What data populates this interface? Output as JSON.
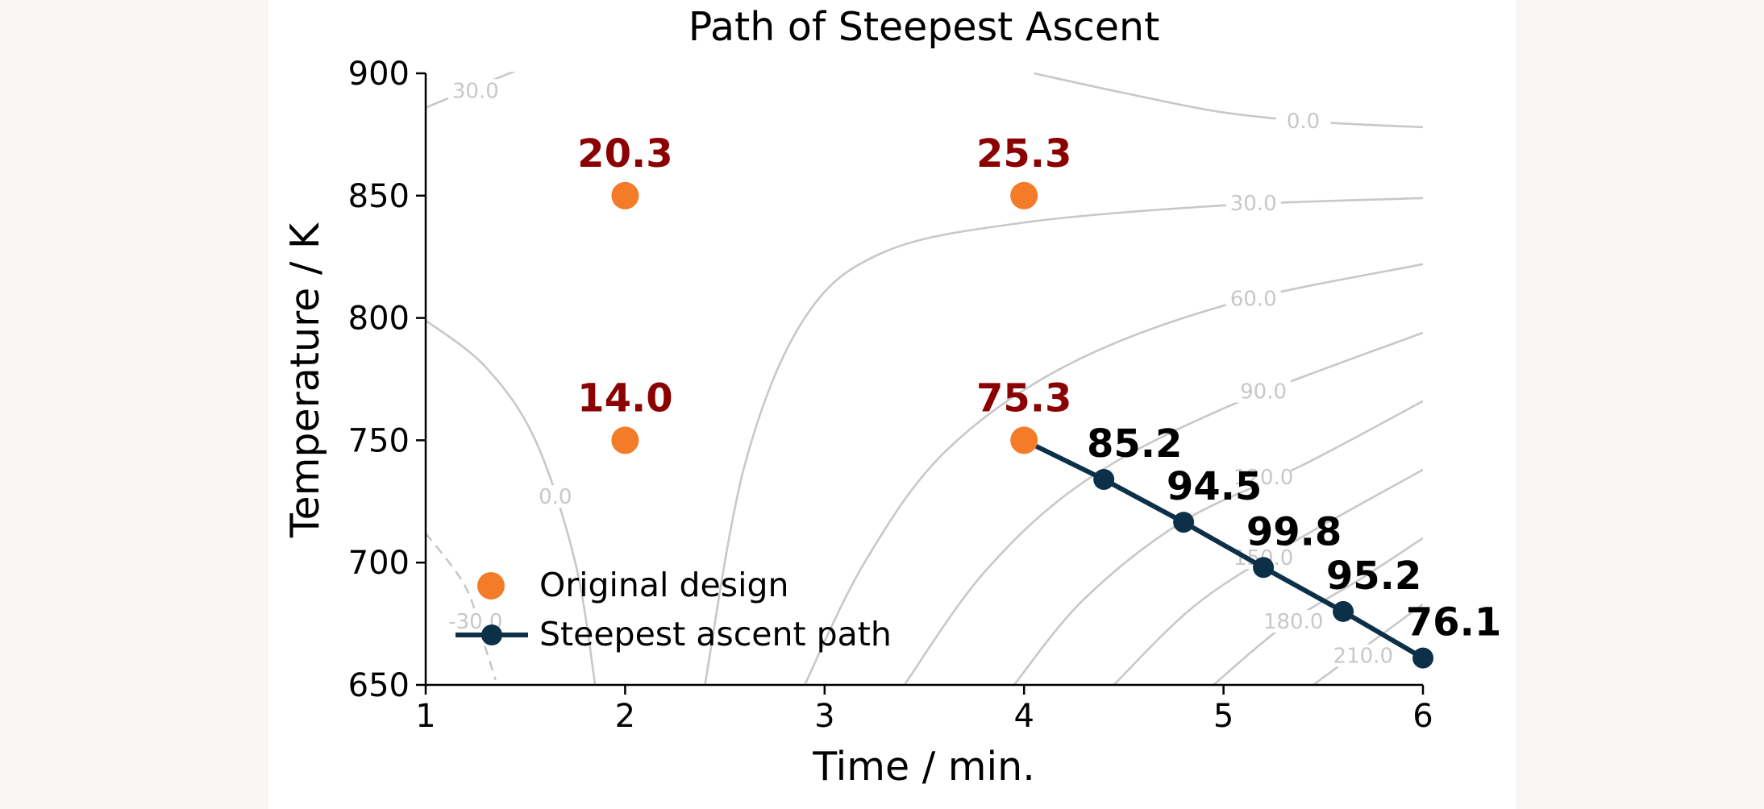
{
  "chart_data": {
    "type": "scatter",
    "title": "Path of Steepest Ascent",
    "xlabel": "Time / min.",
    "ylabel": "Temperature / K",
    "xlim": [
      1,
      6
    ],
    "ylim": [
      650,
      900
    ],
    "xticks": [
      "1",
      "2",
      "3",
      "4",
      "5",
      "6"
    ],
    "yticks": [
      "650",
      "700",
      "750",
      "800",
      "850",
      "900"
    ],
    "grid": false,
    "legend_position": "lower-left",
    "colors": {
      "design": "#f47b28",
      "design_label": "#8b0000",
      "path": "#0d3049",
      "path_label": "#000000",
      "contour": "#c8c8c8",
      "contour_label": "#c8c8c8",
      "axis": "#000000"
    },
    "series": [
      {
        "name": "Original design",
        "points": [
          {
            "x": 2,
            "y": 850,
            "label": "20.3"
          },
          {
            "x": 4,
            "y": 850,
            "label": "25.3"
          },
          {
            "x": 2,
            "y": 750,
            "label": "14.0"
          },
          {
            "x": 4,
            "y": 750,
            "label": "75.3"
          }
        ]
      },
      {
        "name": "Steepest ascent path",
        "points": [
          {
            "x": 4.0,
            "y": 750.0,
            "label": ""
          },
          {
            "x": 4.4,
            "y": 734,
            "label": "85.2"
          },
          {
            "x": 4.8,
            "y": 716.5,
            "label": "94.5"
          },
          {
            "x": 5.2,
            "y": 698,
            "label": "99.8"
          },
          {
            "x": 5.6,
            "y": 680,
            "label": "95.2"
          },
          {
            "x": 6.0,
            "y": 661,
            "label": "76.1"
          }
        ]
      }
    ],
    "contours": [
      {
        "level": "30.0",
        "points": [
          [
            1,
            886
          ],
          [
            1.45,
            901
          ]
        ],
        "label_at": [
          1.25,
          893
        ],
        "dashed": false
      },
      {
        "level": "0.0",
        "points": [
          [
            4.05,
            900
          ],
          [
            4.5,
            892
          ],
          [
            5,
            884
          ],
          [
            5.5,
            880
          ],
          [
            6,
            878
          ]
        ],
        "label_at": [
          5.4,
          880.5
        ],
        "dashed": false
      },
      {
        "level": "30.0",
        "points": [
          [
            2.4,
            650
          ],
          [
            2.6,
            740
          ],
          [
            2.9,
            800
          ],
          [
            3.3,
            827
          ],
          [
            4,
            839
          ],
          [
            5,
            846
          ],
          [
            6,
            849
          ]
        ],
        "label_at": [
          5.15,
          847
        ],
        "dashed": false
      },
      {
        "level": "60.0",
        "points": [
          [
            2.9,
            650
          ],
          [
            3.2,
            700
          ],
          [
            3.6,
            745
          ],
          [
            4.2,
            780
          ],
          [
            5,
            805
          ],
          [
            6,
            822
          ]
        ],
        "label_at": [
          5.15,
          808
        ],
        "dashed": false
      },
      {
        "level": "90.0",
        "points": [
          [
            3.4,
            650
          ],
          [
            3.8,
            696
          ],
          [
            4.3,
            733
          ],
          [
            5,
            763
          ],
          [
            6,
            794
          ]
        ],
        "label_at": [
          5.2,
          770
        ],
        "dashed": false
      },
      {
        "level": "120.0",
        "points": [
          [
            3.95,
            650
          ],
          [
            4.3,
            685
          ],
          [
            4.8,
            717
          ],
          [
            5.4,
            740
          ],
          [
            6,
            766
          ]
        ],
        "label_at": [
          5.2,
          735
        ],
        "dashed": false
      },
      {
        "level": "150.0",
        "points": [
          [
            4.45,
            650
          ],
          [
            4.85,
            682
          ],
          [
            5.3,
            706
          ],
          [
            6,
            738
          ]
        ],
        "label_at": [
          5.2,
          702
        ],
        "dashed": false
      },
      {
        "level": "180.0",
        "points": [
          [
            4.95,
            650
          ],
          [
            5.3,
            674
          ],
          [
            5.7,
            694
          ],
          [
            6,
            710
          ]
        ],
        "label_at": [
          5.35,
          676
        ],
        "dashed": false
      },
      {
        "level": "210.0",
        "points": [
          [
            5.45,
            650
          ],
          [
            5.75,
            668
          ],
          [
            6,
            683
          ]
        ],
        "label_at": [
          5.7,
          662
        ],
        "dashed": false
      },
      {
        "level": "0.0",
        "points": [
          [
            1,
            799
          ],
          [
            1.3,
            780
          ],
          [
            1.55,
            750
          ],
          [
            1.75,
            700
          ],
          [
            1.85,
            650
          ]
        ],
        "label_at": [
          1.65,
          727
        ],
        "dashed": false
      },
      {
        "level": "-30.0",
        "points": [
          [
            1,
            712
          ],
          [
            1.2,
            690
          ],
          [
            1.3,
            665
          ],
          [
            1.35,
            652
          ]
        ],
        "label_at": [
          1.25,
          676
        ],
        "dashed": true
      }
    ]
  }
}
